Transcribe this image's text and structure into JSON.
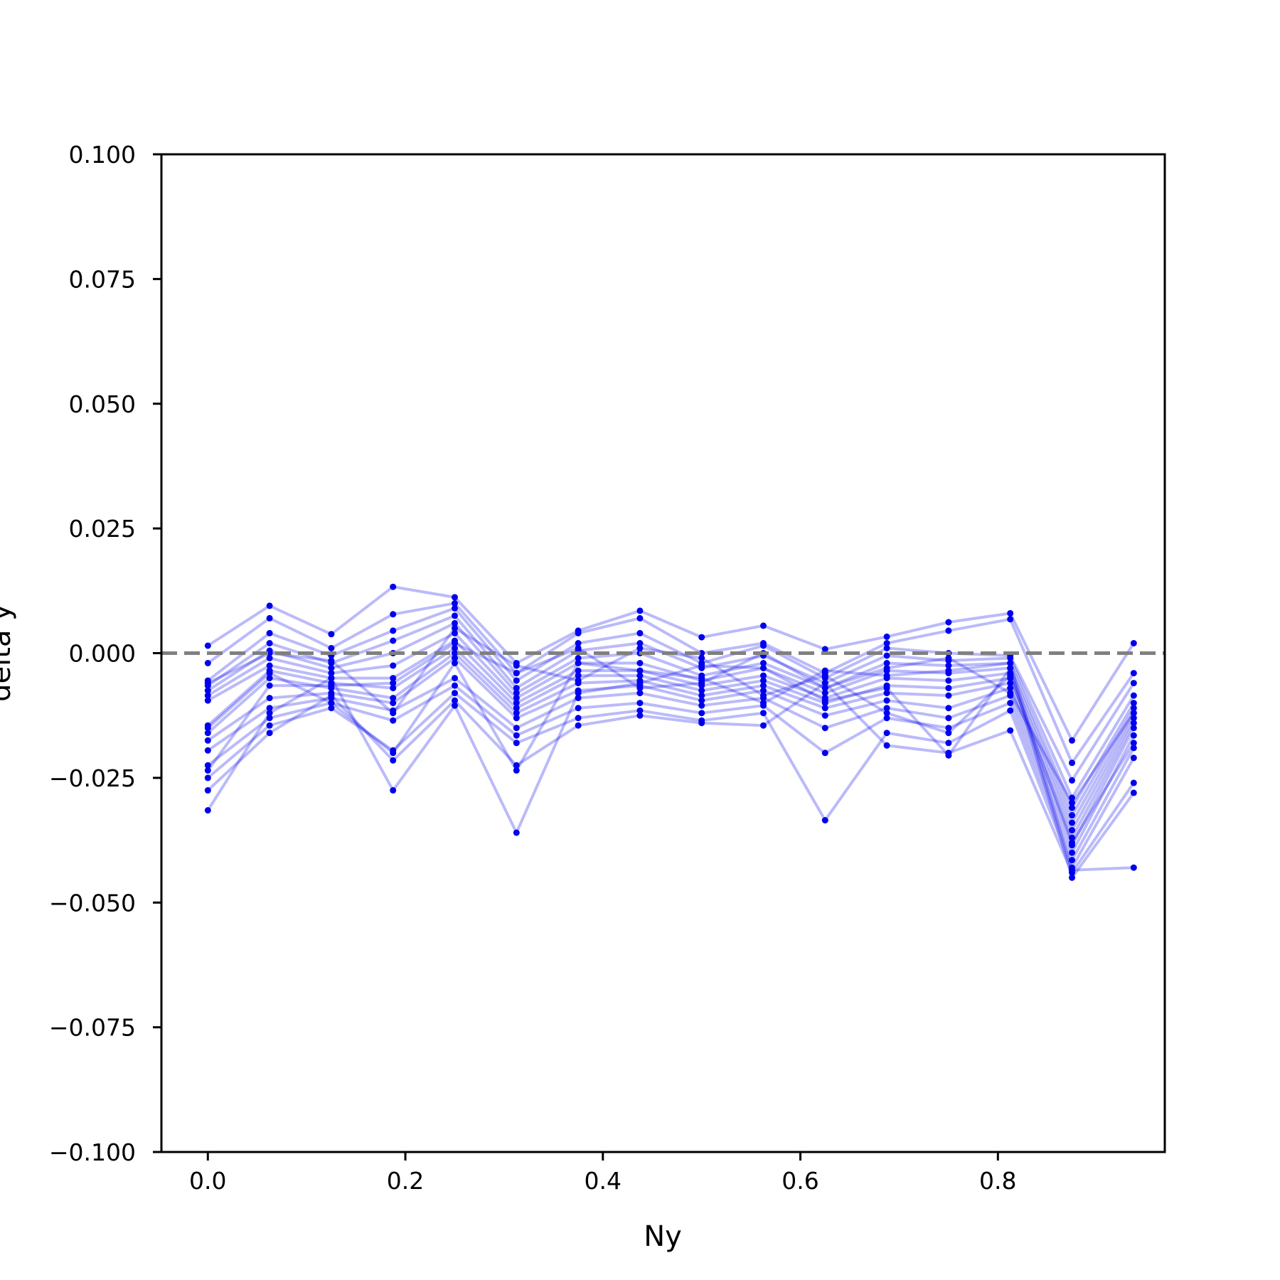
{
  "chart_data": {
    "type": "line",
    "xlabel": "Ny",
    "ylabel": "delta y",
    "xlim": [
      -0.047,
      0.969
    ],
    "ylim": [
      -0.1,
      0.1
    ],
    "xticks": [
      0.0,
      0.2,
      0.4,
      0.6,
      0.8
    ],
    "xtick_labels": [
      "0.0",
      "0.2",
      "0.4",
      "0.6",
      "0.8"
    ],
    "yticks": [
      -0.1,
      -0.075,
      -0.05,
      -0.025,
      0.0,
      0.025,
      0.05,
      0.075,
      0.1
    ],
    "ytick_labels": [
      "−0.100",
      "−0.075",
      "−0.050",
      "−0.025",
      "0.000",
      "0.025",
      "0.050",
      "0.075",
      "0.100"
    ],
    "grid": false,
    "reference_line": {
      "y": 0.0,
      "style": "dashed",
      "color": "#808080"
    },
    "series_color": "#0000ee",
    "x": [
      0.0,
      0.0625,
      0.125,
      0.1875,
      0.25,
      0.3125,
      0.375,
      0.4375,
      0.5,
      0.5625,
      0.625,
      0.6875,
      0.75,
      0.8125,
      0.875,
      0.9375
    ],
    "series": [
      {
        "values": [
          0.0015,
          0.0095,
          0.0038,
          0.0133,
          0.0112,
          -0.002,
          0.0045,
          0.0085,
          0.0032,
          0.0055,
          0.0008,
          0.0033,
          0.0062,
          0.008,
          -0.0175,
          0.002
        ]
      },
      {
        "values": [
          -0.002,
          0.007,
          0.001,
          0.0078,
          0.01,
          -0.004,
          0.004,
          0.007,
          0.0,
          0.002,
          -0.004,
          0.002,
          0.0045,
          0.0068,
          -0.022,
          -0.004
        ]
      },
      {
        "values": [
          -0.0055,
          0.004,
          -0.0005,
          0.0045,
          0.009,
          -0.0055,
          0.002,
          0.004,
          -0.002,
          0.0015,
          -0.005,
          0.001,
          0.0,
          -0.0005,
          -0.0255,
          -0.006
        ]
      },
      {
        "values": [
          -0.0065,
          0.002,
          -0.002,
          0.0025,
          0.0075,
          -0.007,
          0.0005,
          0.002,
          -0.003,
          -0.0005,
          -0.006,
          -0.0005,
          -0.0015,
          -0.001,
          -0.029,
          -0.0085
        ]
      },
      {
        "values": [
          -0.0075,
          0.0005,
          -0.003,
          0.0,
          0.006,
          -0.008,
          -0.001,
          0.0,
          -0.0045,
          -0.002,
          -0.007,
          -0.002,
          -0.0025,
          -0.002,
          -0.031,
          -0.01
        ]
      },
      {
        "values": [
          -0.0085,
          -0.001,
          -0.004,
          -0.0025,
          0.004,
          -0.009,
          -0.002,
          -0.002,
          -0.0055,
          -0.003,
          -0.008,
          -0.0035,
          -0.004,
          -0.003,
          -0.0325,
          -0.011
        ]
      },
      {
        "values": [
          -0.0095,
          -0.0025,
          -0.005,
          -0.005,
          0.0025,
          -0.01,
          -0.0035,
          -0.0035,
          -0.0065,
          -0.0045,
          -0.009,
          -0.005,
          -0.0055,
          -0.004,
          -0.034,
          -0.012
        ]
      },
      {
        "values": [
          -0.0145,
          -0.0035,
          -0.006,
          -0.007,
          0.001,
          -0.011,
          -0.0045,
          -0.0045,
          -0.0075,
          -0.0055,
          -0.01,
          -0.0065,
          -0.007,
          -0.005,
          -0.0355,
          -0.013
        ]
      },
      {
        "values": [
          -0.016,
          -0.005,
          -0.007,
          -0.009,
          0.0,
          -0.012,
          -0.006,
          -0.0055,
          -0.0085,
          -0.0065,
          -0.011,
          -0.008,
          -0.0085,
          -0.006,
          -0.037,
          -0.014
        ]
      },
      {
        "values": [
          -0.0175,
          -0.009,
          -0.008,
          -0.01,
          -0.001,
          -0.013,
          -0.0075,
          -0.0065,
          -0.0095,
          -0.0075,
          -0.0125,
          -0.0095,
          -0.011,
          -0.007,
          -0.0385,
          -0.015
        ]
      },
      {
        "values": [
          -0.0195,
          -0.011,
          -0.009,
          -0.0115,
          -0.005,
          -0.015,
          -0.009,
          -0.008,
          -0.0105,
          -0.009,
          -0.015,
          -0.011,
          -0.013,
          -0.0085,
          -0.04,
          -0.0165
        ]
      },
      {
        "values": [
          -0.0225,
          -0.013,
          -0.01,
          -0.0135,
          -0.0065,
          -0.0165,
          -0.011,
          -0.01,
          -0.012,
          -0.0105,
          -0.02,
          -0.013,
          -0.015,
          -0.01,
          -0.0415,
          -0.019
        ]
      },
      {
        "values": [
          -0.025,
          -0.0145,
          -0.011,
          -0.0195,
          -0.008,
          -0.018,
          -0.013,
          -0.0115,
          -0.0135,
          -0.012,
          -0.0335,
          -0.016,
          -0.018,
          -0.0115,
          -0.043,
          -0.021
        ]
      },
      {
        "values": [
          -0.0275,
          -0.016,
          -0.0085,
          -0.0215,
          -0.0095,
          -0.0225,
          -0.0145,
          -0.0125,
          -0.014,
          -0.0145,
          -0.006,
          -0.0185,
          -0.02,
          -0.0155,
          -0.044,
          -0.026
        ]
      },
      {
        "values": [
          -0.0315,
          -0.012,
          -0.005,
          -0.0275,
          -0.0105,
          -0.036,
          -0.008,
          -0.006,
          -0.0025,
          -0.003,
          -0.0095,
          -0.007,
          -0.0205,
          -0.003,
          -0.045,
          -0.028
        ]
      },
      {
        "values": [
          -0.015,
          -0.004,
          -0.01,
          -0.02,
          -0.002,
          -0.0235,
          -0.002,
          -0.0035,
          -0.005,
          -0.01,
          -0.0035,
          -0.0045,
          -0.0035,
          -0.002,
          -0.0435,
          -0.043
        ]
      },
      {
        "values": [
          -0.006,
          0.0,
          -0.0015,
          -0.012,
          0.005,
          -0.0025,
          -0.0055,
          0.001,
          -0.001,
          -0.0085,
          -0.0045,
          -0.012,
          -0.016,
          -0.0045,
          -0.038,
          -0.018
        ]
      },
      {
        "values": [
          -0.0235,
          -0.0065,
          -0.0065,
          -0.006,
          0.002,
          -0.004,
          0.001,
          -0.007,
          -0.006,
          0.0,
          -0.007,
          -0.003,
          -0.001,
          -0.008,
          -0.03,
          -0.012
        ]
      }
    ]
  }
}
